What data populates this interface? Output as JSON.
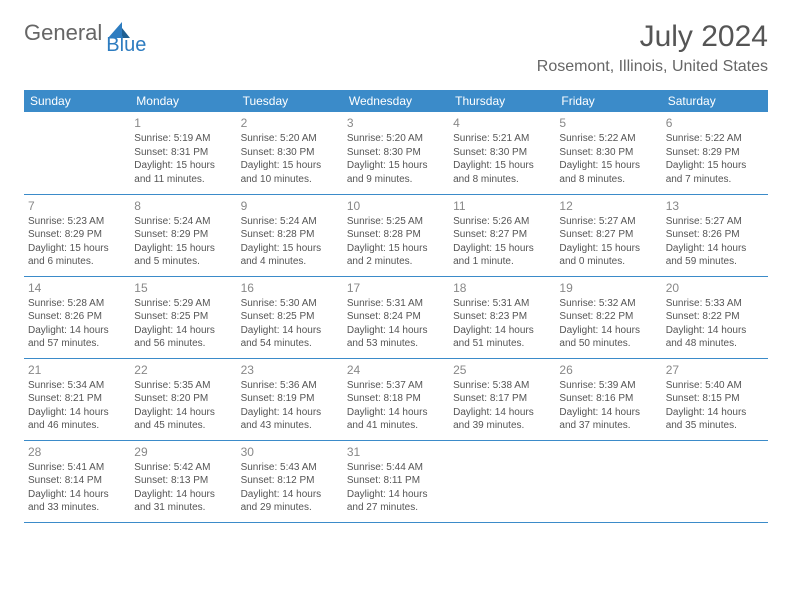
{
  "logo": {
    "general": "General",
    "blue": "Blue"
  },
  "header": {
    "month_title": "July 2024",
    "location": "Rosemont, Illinois, United States"
  },
  "calendar": {
    "header_color": "#3b8bc9",
    "header_text_color": "#ffffff",
    "border_color": "#3b8bc9",
    "text_color": "#555555",
    "background": "#ffffff",
    "font_size_daynum": 12,
    "font_size_text": 10,
    "day_headers": [
      "Sunday",
      "Monday",
      "Tuesday",
      "Wednesday",
      "Thursday",
      "Friday",
      "Saturday"
    ],
    "days": [
      {
        "n": 1,
        "sunrise": "5:19 AM",
        "sunset": "8:31 PM",
        "dl": "15 hours and 11 minutes."
      },
      {
        "n": 2,
        "sunrise": "5:20 AM",
        "sunset": "8:30 PM",
        "dl": "15 hours and 10 minutes."
      },
      {
        "n": 3,
        "sunrise": "5:20 AM",
        "sunset": "8:30 PM",
        "dl": "15 hours and 9 minutes."
      },
      {
        "n": 4,
        "sunrise": "5:21 AM",
        "sunset": "8:30 PM",
        "dl": "15 hours and 8 minutes."
      },
      {
        "n": 5,
        "sunrise": "5:22 AM",
        "sunset": "8:30 PM",
        "dl": "15 hours and 8 minutes."
      },
      {
        "n": 6,
        "sunrise": "5:22 AM",
        "sunset": "8:29 PM",
        "dl": "15 hours and 7 minutes."
      },
      {
        "n": 7,
        "sunrise": "5:23 AM",
        "sunset": "8:29 PM",
        "dl": "15 hours and 6 minutes."
      },
      {
        "n": 8,
        "sunrise": "5:24 AM",
        "sunset": "8:29 PM",
        "dl": "15 hours and 5 minutes."
      },
      {
        "n": 9,
        "sunrise": "5:24 AM",
        "sunset": "8:28 PM",
        "dl": "15 hours and 4 minutes."
      },
      {
        "n": 10,
        "sunrise": "5:25 AM",
        "sunset": "8:28 PM",
        "dl": "15 hours and 2 minutes."
      },
      {
        "n": 11,
        "sunrise": "5:26 AM",
        "sunset": "8:27 PM",
        "dl": "15 hours and 1 minute."
      },
      {
        "n": 12,
        "sunrise": "5:27 AM",
        "sunset": "8:27 PM",
        "dl": "15 hours and 0 minutes."
      },
      {
        "n": 13,
        "sunrise": "5:27 AM",
        "sunset": "8:26 PM",
        "dl": "14 hours and 59 minutes."
      },
      {
        "n": 14,
        "sunrise": "5:28 AM",
        "sunset": "8:26 PM",
        "dl": "14 hours and 57 minutes."
      },
      {
        "n": 15,
        "sunrise": "5:29 AM",
        "sunset": "8:25 PM",
        "dl": "14 hours and 56 minutes."
      },
      {
        "n": 16,
        "sunrise": "5:30 AM",
        "sunset": "8:25 PM",
        "dl": "14 hours and 54 minutes."
      },
      {
        "n": 17,
        "sunrise": "5:31 AM",
        "sunset": "8:24 PM",
        "dl": "14 hours and 53 minutes."
      },
      {
        "n": 18,
        "sunrise": "5:31 AM",
        "sunset": "8:23 PM",
        "dl": "14 hours and 51 minutes."
      },
      {
        "n": 19,
        "sunrise": "5:32 AM",
        "sunset": "8:22 PM",
        "dl": "14 hours and 50 minutes."
      },
      {
        "n": 20,
        "sunrise": "5:33 AM",
        "sunset": "8:22 PM",
        "dl": "14 hours and 48 minutes."
      },
      {
        "n": 21,
        "sunrise": "5:34 AM",
        "sunset": "8:21 PM",
        "dl": "14 hours and 46 minutes."
      },
      {
        "n": 22,
        "sunrise": "5:35 AM",
        "sunset": "8:20 PM",
        "dl": "14 hours and 45 minutes."
      },
      {
        "n": 23,
        "sunrise": "5:36 AM",
        "sunset": "8:19 PM",
        "dl": "14 hours and 43 minutes."
      },
      {
        "n": 24,
        "sunrise": "5:37 AM",
        "sunset": "8:18 PM",
        "dl": "14 hours and 41 minutes."
      },
      {
        "n": 25,
        "sunrise": "5:38 AM",
        "sunset": "8:17 PM",
        "dl": "14 hours and 39 minutes."
      },
      {
        "n": 26,
        "sunrise": "5:39 AM",
        "sunset": "8:16 PM",
        "dl": "14 hours and 37 minutes."
      },
      {
        "n": 27,
        "sunrise": "5:40 AM",
        "sunset": "8:15 PM",
        "dl": "14 hours and 35 minutes."
      },
      {
        "n": 28,
        "sunrise": "5:41 AM",
        "sunset": "8:14 PM",
        "dl": "14 hours and 33 minutes."
      },
      {
        "n": 29,
        "sunrise": "5:42 AM",
        "sunset": "8:13 PM",
        "dl": "14 hours and 31 minutes."
      },
      {
        "n": 30,
        "sunrise": "5:43 AM",
        "sunset": "8:12 PM",
        "dl": "14 hours and 29 minutes."
      },
      {
        "n": 31,
        "sunrise": "5:44 AM",
        "sunset": "8:11 PM",
        "dl": "14 hours and 27 minutes."
      }
    ],
    "start_weekday": 1
  },
  "labels": {
    "sunrise": "Sunrise:",
    "sunset": "Sunset:",
    "daylight": "Daylight:"
  }
}
